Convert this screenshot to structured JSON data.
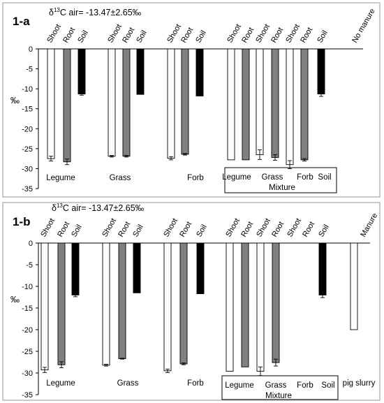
{
  "chart_data": [
    {
      "type": "bar",
      "panel_label": "1-a",
      "delta_label": "air= -13.47±2.65‰",
      "y_unit": "‰",
      "ylim": [
        -35,
        0
      ],
      "y_ticks": [
        0,
        -5,
        -10,
        -15,
        -20,
        -25,
        -30,
        -35
      ],
      "column_headers": [
        "Shoot",
        "Root",
        "Soil",
        "Shoot",
        "Root",
        "Soil",
        "Shoot",
        "Root",
        "Soil",
        "Shoot",
        "Root",
        "Shoot",
        "Root",
        "Shoot",
        "Root",
        "Soil",
        "No manure"
      ],
      "bars": [
        {
          "group": "Legume",
          "type": "Shoot",
          "value": -27.5,
          "error": 0.6
        },
        {
          "group": "Legume",
          "type": "Root",
          "value": -28.3,
          "error": 0.7
        },
        {
          "group": "Legume",
          "type": "Soil",
          "value": -11.3,
          "error": 0.3
        },
        {
          "group": "Grass",
          "type": "Shoot",
          "value": -26.9,
          "error": 0.2
        },
        {
          "group": "Grass",
          "type": "Root",
          "value": -26.9,
          "error": 0.2
        },
        {
          "group": "Grass",
          "type": "Soil",
          "value": -11.4,
          "error": 0.0
        },
        {
          "group": "Forb",
          "type": "Shoot",
          "value": -27.4,
          "error": 0.4
        },
        {
          "group": "Forb",
          "type": "Root",
          "value": -26.4,
          "error": 0.2
        },
        {
          "group": "Forb",
          "type": "Soil",
          "value": -11.8,
          "error": 0.0
        },
        {
          "group": "Mixture Legume",
          "type": "Shoot",
          "value": -27.8,
          "error": 0.0
        },
        {
          "group": "Mixture Legume",
          "type": "Root",
          "value": -27.8,
          "error": 0.0
        },
        {
          "group": "Mixture Grass",
          "type": "Shoot",
          "value": -26.5,
          "error": 1.2
        },
        {
          "group": "Mixture Grass",
          "type": "Root",
          "value": -27.2,
          "error": 0.7
        },
        {
          "group": "Mixture Forb",
          "type": "Shoot",
          "value": -29.0,
          "error": 1.0
        },
        {
          "group": "Mixture Forb",
          "type": "Root",
          "value": -27.8,
          "error": 0.3
        },
        {
          "group": "Mixture",
          "type": "Soil",
          "value": -11.3,
          "error": 0.6
        }
      ],
      "group_labels": [
        "Legume",
        "Grass",
        "Forb"
      ],
      "mixture_labels": [
        "Legume",
        "Grass",
        "Forb",
        "Soil"
      ],
      "mixture_title": "Mixture",
      "bottom_right_label": "",
      "colors": {
        "Shoot": "#ffffff",
        "Root": "#808080",
        "Soil": "#000000"
      }
    },
    {
      "type": "bar",
      "panel_label": "1-b",
      "delta_label": "air= -13.47±2.65‰",
      "y_unit": "‰",
      "ylim": [
        -35,
        0
      ],
      "y_ticks": [
        0,
        -5,
        -10,
        -15,
        -20,
        -25,
        -30,
        -35
      ],
      "column_headers": [
        "Shoot",
        "Root",
        "Soil",
        "Shoot",
        "Root",
        "Soil",
        "Shoot",
        "Root",
        "Soil",
        "Shoot",
        "Root",
        "Shoot",
        "Root",
        "Shoot",
        "Root",
        "Soil",
        "Manure"
      ],
      "bars": [
        {
          "group": "Legume",
          "type": "Shoot",
          "value": -29.3,
          "error": 0.6
        },
        {
          "group": "Legume",
          "type": "Root",
          "value": -28.1,
          "error": 0.7
        },
        {
          "group": "Legume",
          "type": "Soil",
          "value": -12.0,
          "error": 0.4
        },
        {
          "group": "Grass",
          "type": "Shoot",
          "value": -28.2,
          "error": 0.2
        },
        {
          "group": "Grass",
          "type": "Root",
          "value": -26.7,
          "error": 0.1
        },
        {
          "group": "Grass",
          "type": "Soil",
          "value": -11.5,
          "error": 0.0
        },
        {
          "group": "Forb",
          "type": "Shoot",
          "value": -29.5,
          "error": 0.4
        },
        {
          "group": "Forb",
          "type": "Root",
          "value": -27.9,
          "error": 0.2
        },
        {
          "group": "Forb",
          "type": "Soil",
          "value": -11.7,
          "error": 0.0
        },
        {
          "group": "Mixture Legume",
          "type": "Shoot",
          "value": -29.6,
          "error": 0.0
        },
        {
          "group": "Mixture Legume",
          "type": "Root",
          "value": -28.6,
          "error": 0.0
        },
        {
          "group": "Mixture Grass",
          "type": "Shoot",
          "value": -29.6,
          "error": 1.0
        },
        {
          "group": "Mixture Grass",
          "type": "Root",
          "value": -27.6,
          "error": 0.8
        },
        {
          "group": "Mixture",
          "type": "Soil",
          "value": -12.0,
          "error": 0.6
        },
        {
          "group": "Manure",
          "type": "pig slurry",
          "value": -20.0,
          "error": 0.0
        }
      ],
      "group_labels": [
        "Legume",
        "Grass",
        "Forb"
      ],
      "mixture_labels": [
        "Legume",
        "Grass",
        "Forb",
        "Soil"
      ],
      "mixture_title": "Mixture",
      "bottom_right_label": "pig slurry",
      "colors": {
        "Shoot": "#ffffff",
        "Root": "#808080",
        "Soil": "#000000",
        "pig slurry": "#ffffff"
      }
    }
  ]
}
